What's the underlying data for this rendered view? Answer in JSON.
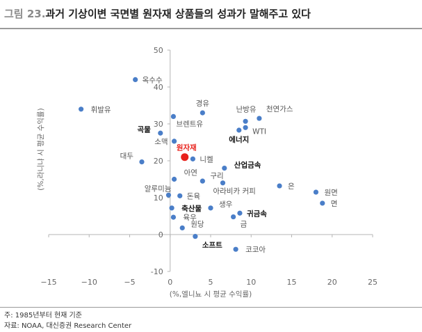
{
  "header": {
    "figure_number": "그림 23.",
    "title": "과거 기상이변 국면별 원자재 상품들의 성과가 말해주고 있다"
  },
  "chart_data": {
    "type": "scatter",
    "xlabel": "(%,엘니뇨 시 평균 수익률)",
    "ylabel": "(%,라니냐 시 평균 수익률)",
    "xlim": [
      -15,
      25
    ],
    "ylim": [
      -10,
      50
    ],
    "xticks": [
      -15,
      -10,
      -5,
      0,
      5,
      10,
      15,
      20,
      25
    ],
    "yticks": [
      -10,
      0,
      10,
      20,
      30,
      40,
      50
    ],
    "grid": false,
    "points": [
      {
        "label": "옥수수",
        "x": -4.3,
        "y": 42.0
      },
      {
        "label": "휘발유",
        "x": -11.0,
        "y": 34.0
      },
      {
        "label": "경유",
        "x": 4.0,
        "y": 33.0
      },
      {
        "label": "난방유",
        "x": 9.3,
        "y": 30.7
      },
      {
        "label": "천연가스",
        "x": 11.0,
        "y": 31.5
      },
      {
        "label": "브렌트유",
        "x": 0.4,
        "y": 32.0
      },
      {
        "label": "WTI",
        "x": 9.3,
        "y": 29.0
      },
      {
        "label": "에너지",
        "x": 8.5,
        "y": 28.3
      },
      {
        "label": "곡물",
        "x": -1.2,
        "y": 27.5
      },
      {
        "label": "소맥",
        "x": 0.5,
        "y": 25.3
      },
      {
        "label": "대두",
        "x": -3.5,
        "y": 19.7
      },
      {
        "label": "원자재",
        "x": 1.8,
        "y": 21.0
      },
      {
        "label": "니켈",
        "x": 2.8,
        "y": 20.5
      },
      {
        "label": "아연",
        "x": 0.5,
        "y": 15.0
      },
      {
        "label": "산업금속",
        "x": 6.7,
        "y": 18.0
      },
      {
        "label": "구리",
        "x": 4.0,
        "y": 14.5
      },
      {
        "label": "아라비카 커피",
        "x": 6.5,
        "y": 14.0
      },
      {
        "label": "알루미늄",
        "x": -0.2,
        "y": 10.7
      },
      {
        "label": "돈육",
        "x": 1.2,
        "y": 10.5
      },
      {
        "label": "은",
        "x": 13.5,
        "y": 13.2
      },
      {
        "label": "원면",
        "x": 18.0,
        "y": 11.5
      },
      {
        "label": "면",
        "x": 18.8,
        "y": 8.5
      },
      {
        "label": "축산물",
        "x": 0.2,
        "y": 7.2
      },
      {
        "label": "육우",
        "x": 0.4,
        "y": 4.7
      },
      {
        "label": "생우",
        "x": 5.0,
        "y": 7.2
      },
      {
        "label": "귀금속",
        "x": 8.6,
        "y": 5.8
      },
      {
        "label": "금",
        "x": 7.8,
        "y": 4.8
      },
      {
        "label": "원당",
        "x": 1.5,
        "y": 1.8
      },
      {
        "label": "소프트",
        "x": 3.1,
        "y": -0.5
      },
      {
        "label": "코코아",
        "x": 8.1,
        "y": -4.0
      }
    ],
    "point_color": "#4a7ec8",
    "highlight": {
      "label": "원자재",
      "color": "#e8211b"
    },
    "bold_labels": [
      "곡물",
      "에너지",
      "산업금속",
      "축산물",
      "귀금속",
      "소프트"
    ]
  },
  "footer": {
    "note": "주: 1985년부터 현재 기준",
    "source": "자료: NOAA, 대신증권 Research Center"
  }
}
